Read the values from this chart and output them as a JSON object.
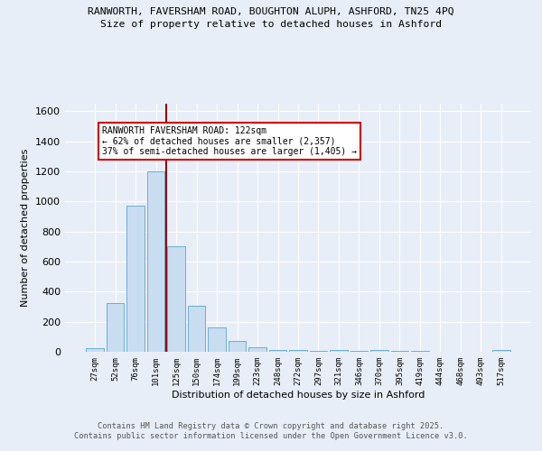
{
  "title_line1": "RANWORTH, FAVERSHAM ROAD, BOUGHTON ALUPH, ASHFORD, TN25 4PQ",
  "title_line2": "Size of property relative to detached houses in Ashford",
  "xlabel": "Distribution of detached houses by size in Ashford",
  "ylabel": "Number of detached properties",
  "categories": [
    "27sqm",
    "52sqm",
    "76sqm",
    "101sqm",
    "125sqm",
    "150sqm",
    "174sqm",
    "199sqm",
    "223sqm",
    "248sqm",
    "272sqm",
    "297sqm",
    "321sqm",
    "346sqm",
    "370sqm",
    "395sqm",
    "419sqm",
    "444sqm",
    "468sqm",
    "493sqm",
    "517sqm"
  ],
  "values": [
    25,
    325,
    975,
    1200,
    700,
    305,
    160,
    70,
    30,
    15,
    10,
    8,
    10,
    5,
    12,
    5,
    5,
    3,
    3,
    3,
    10
  ],
  "bar_color": "#c9ddf0",
  "bar_edge_color": "#6aaed6",
  "vline_color": "#990000",
  "annotation_text": "RANWORTH FAVERSHAM ROAD: 122sqm\n← 62% of detached houses are smaller (2,357)\n37% of semi-detached houses are larger (1,405) →",
  "annotation_box_color": "#ffffff",
  "annotation_box_edge_color": "#cc0000",
  "ylim": [
    0,
    1650
  ],
  "yticks": [
    0,
    200,
    400,
    600,
    800,
    1000,
    1200,
    1400,
    1600
  ],
  "plot_bg_color": "#e8eef8",
  "fig_bg_color": "#e8eef8",
  "grid_color": "#ffffff",
  "footer_line1": "Contains HM Land Registry data © Crown copyright and database right 2025.",
  "footer_line2": "Contains public sector information licensed under the Open Government Licence v3.0."
}
